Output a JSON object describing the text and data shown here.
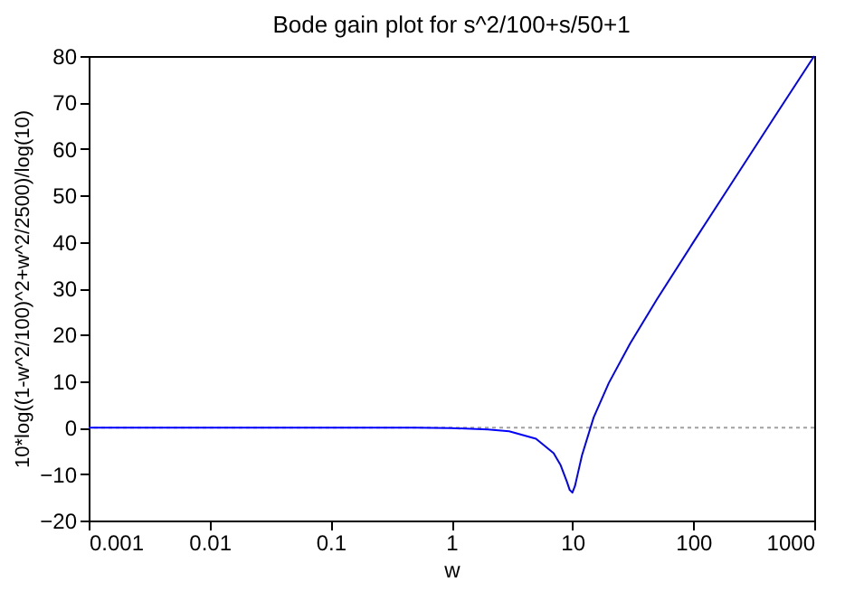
{
  "chart_data": {
    "type": "line",
    "title": "Bode gain plot for s^2/100+s/50+1",
    "xlabel": "w",
    "ylabel": "10*log((1-w^2/100)^2+w^2/2500)/log(10)",
    "log": "x",
    "x": [
      0.001,
      0.01,
      0.1,
      0.5,
      1,
      2,
      3,
      5,
      7,
      8,
      9,
      9.5,
      10,
      10.5,
      11,
      12,
      15,
      20,
      30,
      50,
      100,
      200,
      500,
      1000
    ],
    "series": [
      {
        "color": "#0000ff",
        "values": [
          0,
          0,
          0,
          0,
          -0.1,
          -0.4,
          -0.8,
          -2.4,
          -5.5,
          -8.1,
          -11.6,
          -13.4,
          -14,
          -12.6,
          -10.3,
          -6,
          2.2,
          9.6,
          18.1,
          27.6,
          39.9,
          52,
          68,
          80
        ]
      }
    ],
    "xlim": [
      0.001,
      1000
    ],
    "xticks": [
      0.001,
      0.01,
      0.1,
      1,
      10,
      100,
      1000
    ],
    "ylim": [
      -20,
      80
    ],
    "yticks": [
      -20,
      -10,
      0,
      10,
      20,
      30,
      40,
      50,
      60,
      70,
      80
    ],
    "ref_lines": [
      {
        "axis": "y",
        "value": 0,
        "color": "#a0a0a0",
        "line_style": "dotted"
      }
    ],
    "grid": false
  }
}
